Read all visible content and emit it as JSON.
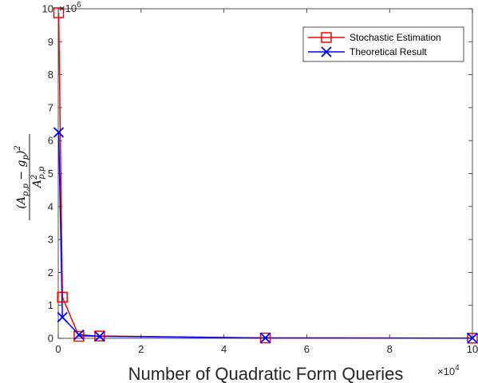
{
  "chart_data": {
    "type": "line",
    "title": "",
    "xlabel": "Number of Quadratic Form Queries",
    "ylabel": "(A_{p,p} − g_p)^2 / A_{p,p}^2",
    "ylabel_parts": {
      "num_open": "(",
      "num_A": "A",
      "num_sub_p": "p,p",
      "num_minus": " − ",
      "num_g": "g",
      "num_sub": "p",
      "num_close": ")",
      "num_exp": "2",
      "den_A": "A",
      "den_exp": "2",
      "den_sub": "p,p"
    },
    "x_exponent_label": "×10",
    "x_exponent": "4",
    "y_exponent_label": "×10",
    "y_exponent": "6",
    "xlim": [
      0,
      100000
    ],
    "ylim": [
      0,
      10000000
    ],
    "x_ticks": [
      0,
      20000,
      40000,
      60000,
      80000,
      100000
    ],
    "x_tick_labels": [
      "0",
      "2",
      "4",
      "6",
      "8",
      "10"
    ],
    "y_ticks": [
      0,
      1000000,
      2000000,
      3000000,
      4000000,
      5000000,
      6000000,
      7000000,
      8000000,
      9000000,
      10000000
    ],
    "y_tick_labels": [
      "0",
      "1",
      "2",
      "3",
      "4",
      "5",
      "6",
      "7",
      "8",
      "9",
      "10"
    ],
    "grid": false,
    "legend_position": "top-right",
    "series": [
      {
        "name": "Stochastic Estimation",
        "color": "#ff0000",
        "marker": "square",
        "x": [
          100,
          1000,
          5000,
          10000,
          50000,
          100000
        ],
        "y": [
          9880000,
          1250000,
          60000,
          70000,
          10000,
          5000
        ]
      },
      {
        "name": "Theoretical Result",
        "color": "#0000ff",
        "marker": "x",
        "x": [
          100,
          1000,
          5000,
          10000,
          50000,
          100000
        ],
        "y": [
          6250000,
          640000,
          110000,
          60000,
          12000,
          6000
        ]
      }
    ]
  }
}
